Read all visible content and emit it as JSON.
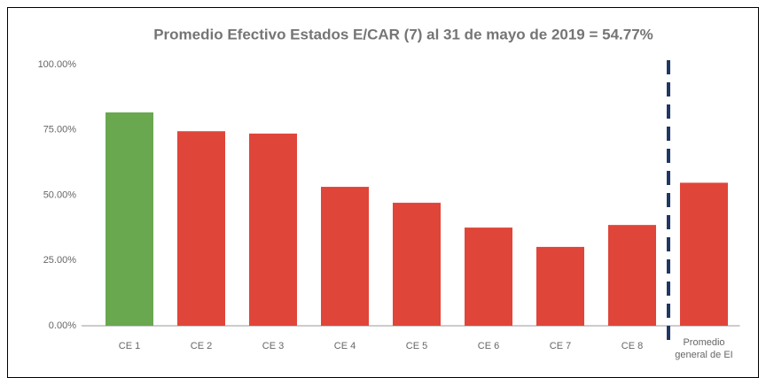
{
  "chart_data": {
    "type": "bar",
    "title": "Promedio Efectivo Estados E/CAR (7) al 31 de mayo de 2019 = 54.77%",
    "categories": [
      "CE 1",
      "CE 2",
      "CE 3",
      "CE 4",
      "CE 5",
      "CE 6",
      "CE 7",
      "CE 8",
      "Promedio general de EI"
    ],
    "values": [
      81.7,
      74.5,
      73.6,
      53.2,
      47.1,
      37.6,
      30.2,
      38.6,
      54.77
    ],
    "colors": [
      "#6aa84f",
      "#e0453a",
      "#e0453a",
      "#e0453a",
      "#e0453a",
      "#e0453a",
      "#e0453a",
      "#e0453a",
      "#e0453a"
    ],
    "ylim": [
      0,
      100
    ],
    "yticks": [
      {
        "value": 0,
        "label": "0.00%"
      },
      {
        "value": 25,
        "label": "25.00%"
      },
      {
        "value": 50,
        "label": "50.00%"
      },
      {
        "value": 75,
        "label": "75.00%"
      },
      {
        "value": 100,
        "label": "100.00%"
      }
    ],
    "grid": false
  }
}
